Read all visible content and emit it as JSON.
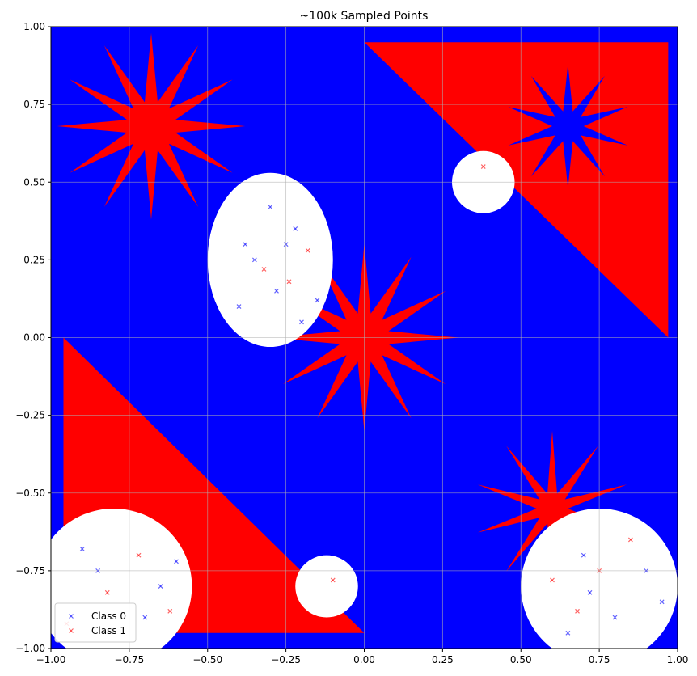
{
  "chart_data": {
    "type": "scatter",
    "title": "~100k Sampled Points",
    "xlabel": "",
    "ylabel": "",
    "xlim": [
      -1.0,
      1.0
    ],
    "ylim": [
      -1.0,
      1.0
    ],
    "xticks": [
      "−1.00",
      "−0.75",
      "−0.50",
      "−0.25",
      "0.00",
      "0.25",
      "0.50",
      "0.75",
      "1.00"
    ],
    "yticks": [
      "1.00",
      "0.75",
      "0.50",
      "0.25",
      "0.00",
      "−0.25",
      "−0.50",
      "−0.75",
      "−1.00"
    ],
    "grid": true,
    "legend_position": "lower-left",
    "series": [
      {
        "name": "Class 0",
        "color": "#0000ff",
        "marker": "x"
      },
      {
        "name": "Class 1",
        "color": "#ff0000",
        "marker": "x"
      }
    ],
    "regions": {
      "white_ellipses": [
        {
          "cx": -0.3,
          "cy": 0.25,
          "rx": 0.2,
          "ry": 0.28
        },
        {
          "cx": 0.75,
          "cy": -0.8,
          "rx": 0.25,
          "ry": 0.25
        },
        {
          "cx": -0.8,
          "cy": -0.8,
          "rx": 0.25,
          "ry": 0.25
        },
        {
          "cx": -0.12,
          "cy": -0.8,
          "rx": 0.1,
          "ry": 0.1
        },
        {
          "cx": 0.38,
          "cy": 0.5,
          "rx": 0.1,
          "ry": 0.1
        }
      ],
      "red_stars": [
        {
          "cx": -0.68,
          "cy": 0.68,
          "r_outer": 0.3,
          "r_inner": 0.08,
          "spikes": 12
        },
        {
          "cx": 0.0,
          "cy": 0.0,
          "r_outer": 0.3,
          "r_inner": 0.08,
          "spikes": 12
        },
        {
          "cx": 0.6,
          "cy": -0.55,
          "r_outer": 0.25,
          "r_inner": 0.05,
          "spikes": 10
        }
      ],
      "red_triangles": [
        {
          "points": [
            [
              0.0,
              0.95
            ],
            [
              0.97,
              0.95
            ],
            [
              0.97,
              0.0
            ]
          ]
        },
        {
          "points": [
            [
              -0.96,
              0.0
            ],
            [
              -0.96,
              -0.95
            ],
            [
              0.0,
              -0.95
            ]
          ]
        }
      ],
      "blue_star": {
        "cx": 0.65,
        "cy": 0.68,
        "r_outer": 0.2,
        "r_inner": 0.05,
        "spikes": 10
      }
    },
    "sample_points_class0": [
      [
        -0.4,
        0.1
      ],
      [
        -0.35,
        0.25
      ],
      [
        -0.25,
        0.3
      ],
      [
        -0.2,
        0.05
      ],
      [
        -0.3,
        0.42
      ],
      [
        -0.28,
        0.15
      ],
      [
        -0.22,
        0.35
      ],
      [
        -0.38,
        0.3
      ],
      [
        -0.15,
        0.12
      ],
      [
        0.7,
        -0.7
      ],
      [
        0.8,
        -0.9
      ],
      [
        0.65,
        -0.95
      ],
      [
        0.9,
        -0.75
      ],
      [
        0.95,
        -0.85
      ],
      [
        0.72,
        -0.82
      ],
      [
        -0.85,
        -0.75
      ],
      [
        -0.7,
        -0.9
      ],
      [
        -0.65,
        -0.8
      ],
      [
        -0.9,
        -0.68
      ],
      [
        -0.6,
        -0.72
      ]
    ],
    "sample_points_class1": [
      [
        -0.32,
        0.22
      ],
      [
        -0.24,
        0.18
      ],
      [
        -0.18,
        0.28
      ],
      [
        0.75,
        -0.75
      ],
      [
        0.68,
        -0.88
      ],
      [
        0.85,
        -0.65
      ],
      [
        0.6,
        -0.78
      ],
      [
        -0.82,
        -0.82
      ],
      [
        -0.72,
        -0.7
      ],
      [
        -0.62,
        -0.88
      ],
      [
        -0.95,
        -0.92
      ],
      [
        -0.1,
        -0.78
      ],
      [
        0.38,
        0.55
      ]
    ]
  }
}
